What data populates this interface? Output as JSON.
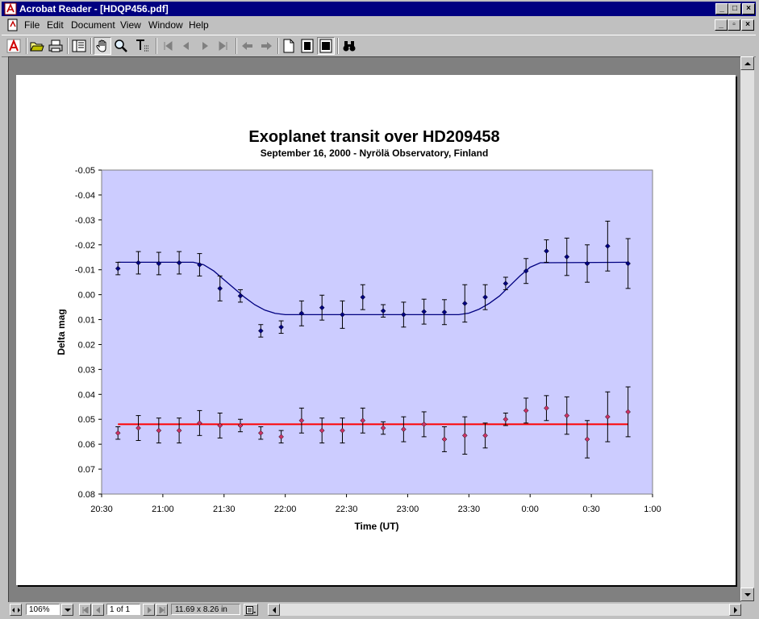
{
  "window": {
    "title": "Acrobat Reader - [HDQP456.pdf]"
  },
  "menu": {
    "items": [
      {
        "label": "File"
      },
      {
        "label": "Edit"
      },
      {
        "label": "Document"
      },
      {
        "label": "View"
      },
      {
        "label": "Window"
      },
      {
        "label": "Help"
      }
    ]
  },
  "status": {
    "zoom": "106%",
    "page": "1 of 1",
    "page_size": "11.69 x 8.26 in"
  },
  "chart_data": {
    "type": "scatter",
    "title": "Exoplanet transit over HD209458",
    "subtitle": "September 16, 2000 - Nyrölä Observatory, Finland",
    "xlabel": "Time (UT)",
    "ylabel": "Delta mag",
    "x_ticks": [
      "20:30",
      "21:00",
      "21:30",
      "22:00",
      "22:30",
      "23:00",
      "23:30",
      "0:00",
      "0:30",
      "1:00"
    ],
    "y_ticks": [
      "-0.05",
      "-0.04",
      "-0.03",
      "-0.02",
      "-0.01",
      "0.00",
      "0.01",
      "0.02",
      "0.03",
      "0.04",
      "0.05",
      "0.06",
      "0.07",
      "0.08"
    ],
    "ylim": [
      -0.05,
      0.08
    ],
    "y_inverted": true,
    "x_unit": "minutes after 20:30 UT",
    "xlim": [
      0,
      270
    ],
    "plot_background": "#ccccff",
    "series": [
      {
        "color": "#000080",
        "points": [
          {
            "x": 8,
            "y": -0.0105,
            "err": 0.0025
          },
          {
            "x": 18,
            "y": -0.0128,
            "err": 0.0045
          },
          {
            "x": 28,
            "y": -0.0125,
            "err": 0.0045
          },
          {
            "x": 38,
            "y": -0.0128,
            "err": 0.0045
          },
          {
            "x": 48,
            "y": -0.012,
            "err": 0.0045
          },
          {
            "x": 58,
            "y": -0.0025,
            "err": 0.005
          },
          {
            "x": 68,
            "y": 0.0005,
            "err": 0.0025
          },
          {
            "x": 78,
            "y": 0.0145,
            "err": 0.0025
          },
          {
            "x": 88,
            "y": 0.013,
            "err": 0.0025
          },
          {
            "x": 98,
            "y": 0.0075,
            "err": 0.005
          },
          {
            "x": 108,
            "y": 0.0052,
            "err": 0.005
          },
          {
            "x": 118,
            "y": 0.008,
            "err": 0.0055
          },
          {
            "x": 128,
            "y": 0.001,
            "err": 0.005
          },
          {
            "x": 138,
            "y": 0.0065,
            "err": 0.0025
          },
          {
            "x": 148,
            "y": 0.008,
            "err": 0.005
          },
          {
            "x": 158,
            "y": 0.0068,
            "err": 0.005
          },
          {
            "x": 168,
            "y": 0.007,
            "err": 0.005
          },
          {
            "x": 178,
            "y": 0.0035,
            "err": 0.0075
          },
          {
            "x": 188,
            "y": 0.001,
            "err": 0.005
          },
          {
            "x": 198,
            "y": -0.0045,
            "err": 0.0025
          },
          {
            "x": 208,
            "y": -0.0095,
            "err": 0.005
          },
          {
            "x": 218,
            "y": -0.0175,
            "err": 0.0045
          },
          {
            "x": 228,
            "y": -0.0152,
            "err": 0.0075
          },
          {
            "x": 238,
            "y": -0.0125,
            "err": 0.0075
          },
          {
            "x": 248,
            "y": -0.0195,
            "err": 0.01
          },
          {
            "x": 258,
            "y": -0.0125,
            "err": 0.01
          }
        ]
      },
      {
        "color": "#cc3366",
        "points": [
          {
            "x": 8,
            "y": 0.0555,
            "err": 0.0025
          },
          {
            "x": 18,
            "y": 0.0535,
            "err": 0.005
          },
          {
            "x": 28,
            "y": 0.0545,
            "err": 0.005
          },
          {
            "x": 38,
            "y": 0.0545,
            "err": 0.005
          },
          {
            "x": 48,
            "y": 0.0515,
            "err": 0.005
          },
          {
            "x": 58,
            "y": 0.0525,
            "err": 0.005
          },
          {
            "x": 68,
            "y": 0.0525,
            "err": 0.0025
          },
          {
            "x": 78,
            "y": 0.0555,
            "err": 0.0025
          },
          {
            "x": 88,
            "y": 0.057,
            "err": 0.0025
          },
          {
            "x": 98,
            "y": 0.0505,
            "err": 0.005
          },
          {
            "x": 108,
            "y": 0.0545,
            "err": 0.005
          },
          {
            "x": 118,
            "y": 0.0545,
            "err": 0.005
          },
          {
            "x": 128,
            "y": 0.0505,
            "err": 0.005
          },
          {
            "x": 138,
            "y": 0.0535,
            "err": 0.0025
          },
          {
            "x": 148,
            "y": 0.054,
            "err": 0.005
          },
          {
            "x": 158,
            "y": 0.052,
            "err": 0.005
          },
          {
            "x": 168,
            "y": 0.058,
            "err": 0.005
          },
          {
            "x": 178,
            "y": 0.0565,
            "err": 0.0075
          },
          {
            "x": 188,
            "y": 0.0565,
            "err": 0.005
          },
          {
            "x": 198,
            "y": 0.05,
            "err": 0.0025
          },
          {
            "x": 208,
            "y": 0.0465,
            "err": 0.005
          },
          {
            "x": 218,
            "y": 0.0455,
            "err": 0.005
          },
          {
            "x": 228,
            "y": 0.0485,
            "err": 0.0075
          },
          {
            "x": 238,
            "y": 0.058,
            "err": 0.0075
          },
          {
            "x": 248,
            "y": 0.049,
            "err": 0.01
          },
          {
            "x": 258,
            "y": 0.047,
            "err": 0.01
          }
        ]
      }
    ],
    "fit_lines": [
      {
        "color": "#000080",
        "x": [
          8,
          45,
          50,
          55,
          60,
          65,
          70,
          75,
          80,
          85,
          90,
          95,
          170,
          175,
          180,
          185,
          190,
          195,
          200,
          205,
          210,
          215,
          258
        ],
        "y": [
          -0.013,
          -0.013,
          -0.012,
          -0.0095,
          -0.006,
          -0.0025,
          0.001,
          0.004,
          0.0062,
          0.0075,
          0.008,
          0.008,
          0.008,
          0.008,
          0.0074,
          0.0058,
          0.0035,
          0.0005,
          -0.0035,
          -0.0075,
          -0.011,
          -0.0128,
          -0.013
        ]
      },
      {
        "color": "#ff0000",
        "x": [
          8,
          258
        ],
        "y": [
          0.052,
          0.052
        ]
      }
    ]
  }
}
